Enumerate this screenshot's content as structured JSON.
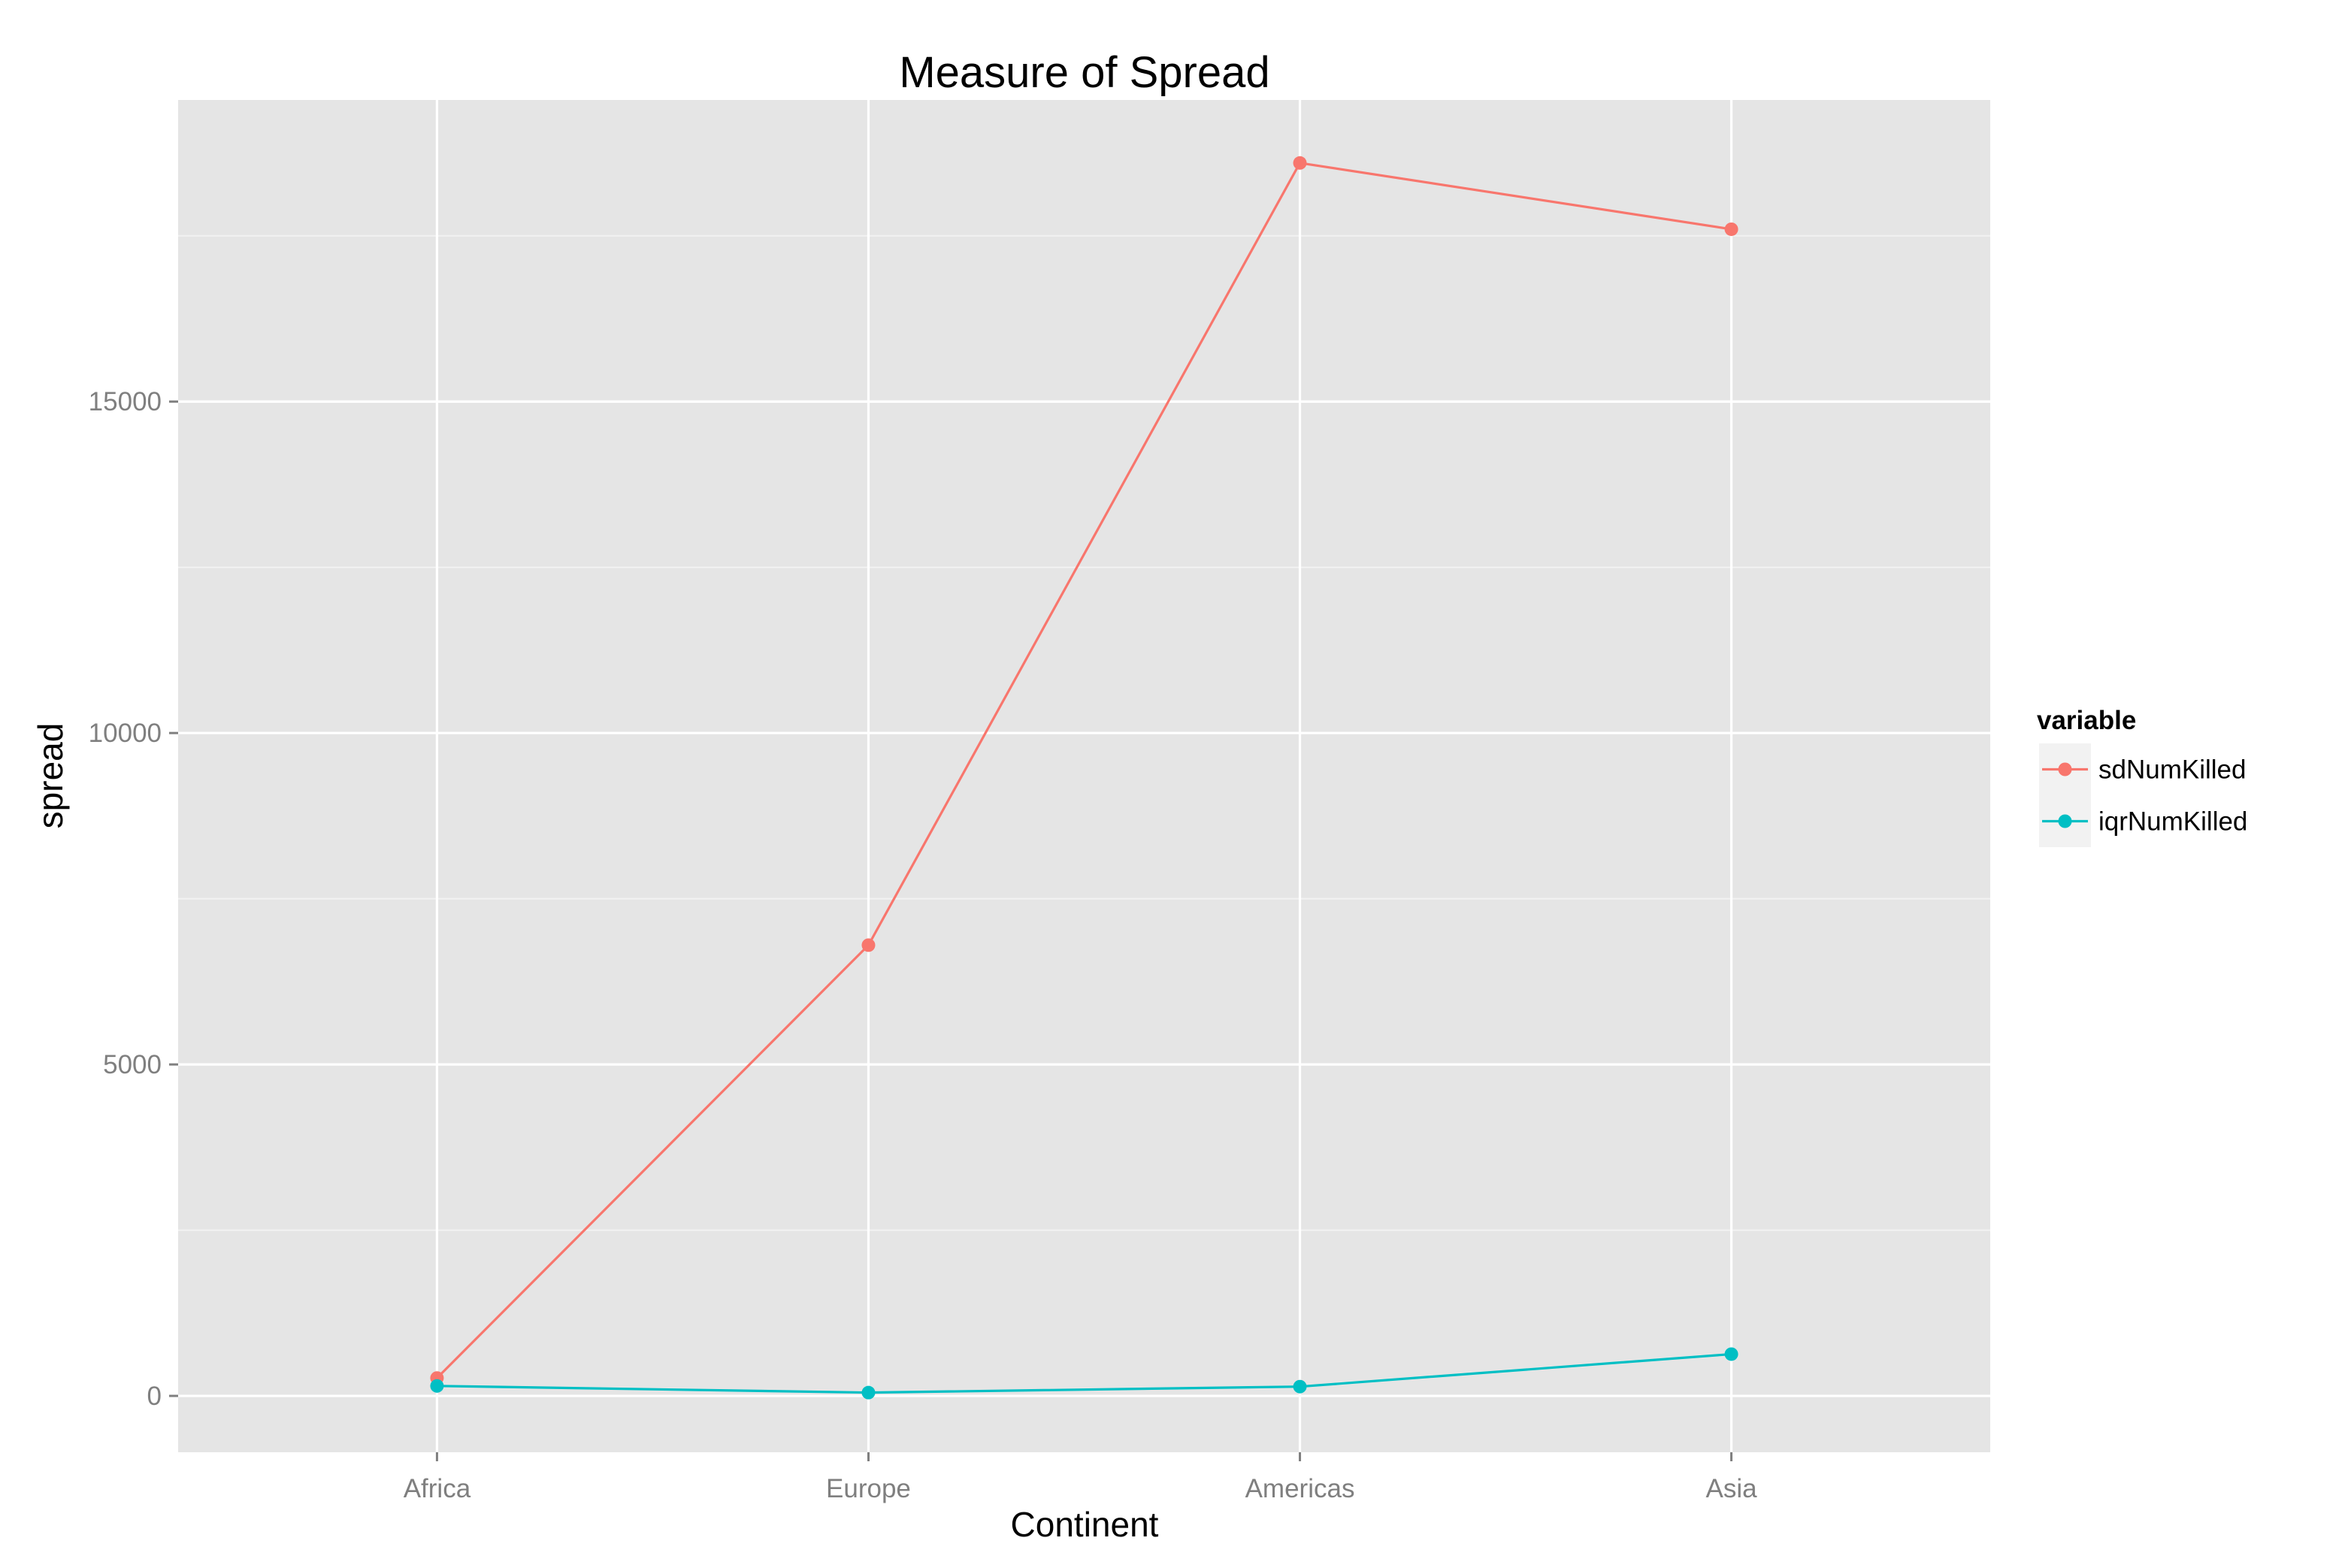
{
  "chart_data": {
    "type": "line",
    "title": "Measure of Spread",
    "xlabel": "Continent",
    "ylabel": "spread",
    "categories": [
      "Africa",
      "Europe",
      "Americas",
      "Asia"
    ],
    "ylim": [
      -850,
      19550
    ],
    "y_ticks": [
      0,
      5000,
      10000,
      15000
    ],
    "y_tick_labels": [
      "0",
      "5000",
      "10000",
      "15000"
    ],
    "grid": true,
    "legend": {
      "title": "variable",
      "position": "right"
    },
    "series": [
      {
        "name": "sdNumKilled",
        "color": "#F8766D",
        "values": [
          270,
          6800,
          18600,
          17600
        ]
      },
      {
        "name": "iqrNumKilled",
        "color": "#00BFC4",
        "values": [
          150,
          50,
          140,
          630
        ]
      }
    ]
  }
}
